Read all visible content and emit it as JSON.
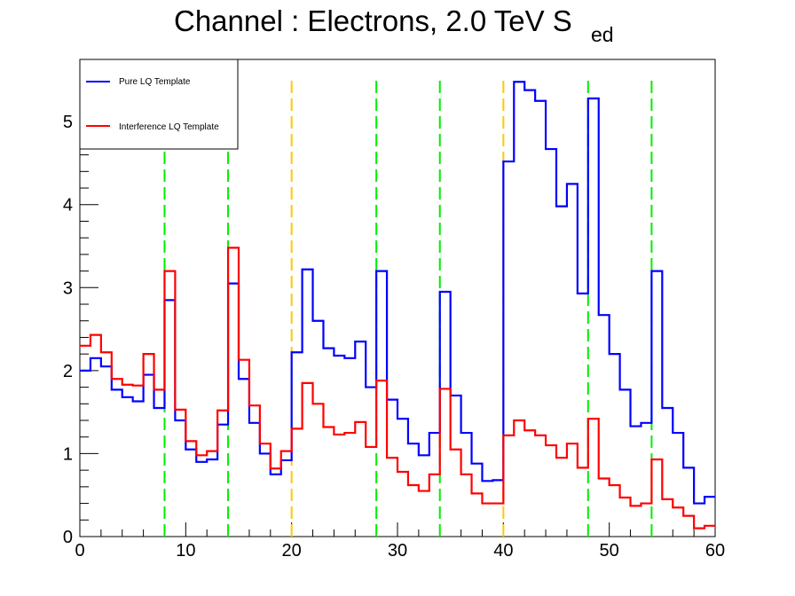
{
  "chart_data": {
    "type": "line",
    "title_main": "Channel : Electrons, 2.0 TeV S",
    "title_sub": "ed",
    "xlim": [
      0,
      60
    ],
    "ylim": [
      0,
      5.75
    ],
    "x_ticks": [
      "0",
      "10",
      "20",
      "30",
      "40",
      "50",
      "60"
    ],
    "y_ticks": [
      "0",
      "1",
      "2",
      "3",
      "4",
      "5"
    ],
    "grid": false,
    "legend_position": "top-left",
    "series": [
      {
        "name": "Pure LQ Template",
        "color": "#0000ff",
        "bin_width": 1,
        "values": [
          2.0,
          2.15,
          2.05,
          1.77,
          1.68,
          1.63,
          1.95,
          1.55,
          2.85,
          1.4,
          1.05,
          0.9,
          0.93,
          1.35,
          3.05,
          1.9,
          1.37,
          1.0,
          0.75,
          0.92,
          2.22,
          3.22,
          2.6,
          2.27,
          2.18,
          2.15,
          2.35,
          1.8,
          3.2,
          1.65,
          1.42,
          1.12,
          0.98,
          1.25,
          2.95,
          1.7,
          1.25,
          0.88,
          0.67,
          0.68,
          4.52,
          5.48,
          5.38,
          5.25,
          4.67,
          3.98,
          4.25,
          2.93,
          5.28,
          2.67,
          2.2,
          1.77,
          1.33,
          1.37,
          3.2,
          1.55,
          1.25,
          0.83,
          0.4,
          0.48
        ]
      },
      {
        "name": "Interference LQ Template",
        "color": "#ff0000",
        "bin_width": 1,
        "values": [
          2.3,
          2.43,
          2.22,
          1.9,
          1.83,
          1.82,
          2.2,
          1.77,
          3.2,
          1.53,
          1.15,
          0.98,
          1.03,
          1.52,
          3.48,
          2.13,
          1.58,
          1.12,
          0.82,
          1.03,
          1.3,
          1.85,
          1.6,
          1.32,
          1.23,
          1.25,
          1.38,
          1.08,
          1.88,
          0.95,
          0.78,
          0.62,
          0.55,
          0.75,
          1.78,
          1.05,
          0.75,
          0.52,
          0.4,
          0.4,
          1.22,
          1.4,
          1.28,
          1.22,
          1.1,
          0.95,
          1.12,
          0.83,
          1.42,
          0.7,
          0.62,
          0.47,
          0.37,
          0.4,
          0.93,
          0.45,
          0.35,
          0.25,
          0.1,
          0.13
        ]
      }
    ],
    "vertical_lines": [
      {
        "x": 8,
        "ymax": 4.65,
        "color": "#00ee00"
      },
      {
        "x": 14,
        "ymax": 4.65,
        "color": "#00ee00"
      },
      {
        "x": 20,
        "ymax": 5.5,
        "color": "#ffc800"
      },
      {
        "x": 28,
        "ymax": 5.5,
        "color": "#00ee00"
      },
      {
        "x": 34,
        "ymax": 5.5,
        "color": "#00ee00"
      },
      {
        "x": 40,
        "ymax": 5.5,
        "color": "#ffc800"
      },
      {
        "x": 48,
        "ymax": 5.5,
        "color": "#00ee00"
      },
      {
        "x": 54,
        "ymax": 5.5,
        "color": "#00ee00"
      }
    ]
  }
}
